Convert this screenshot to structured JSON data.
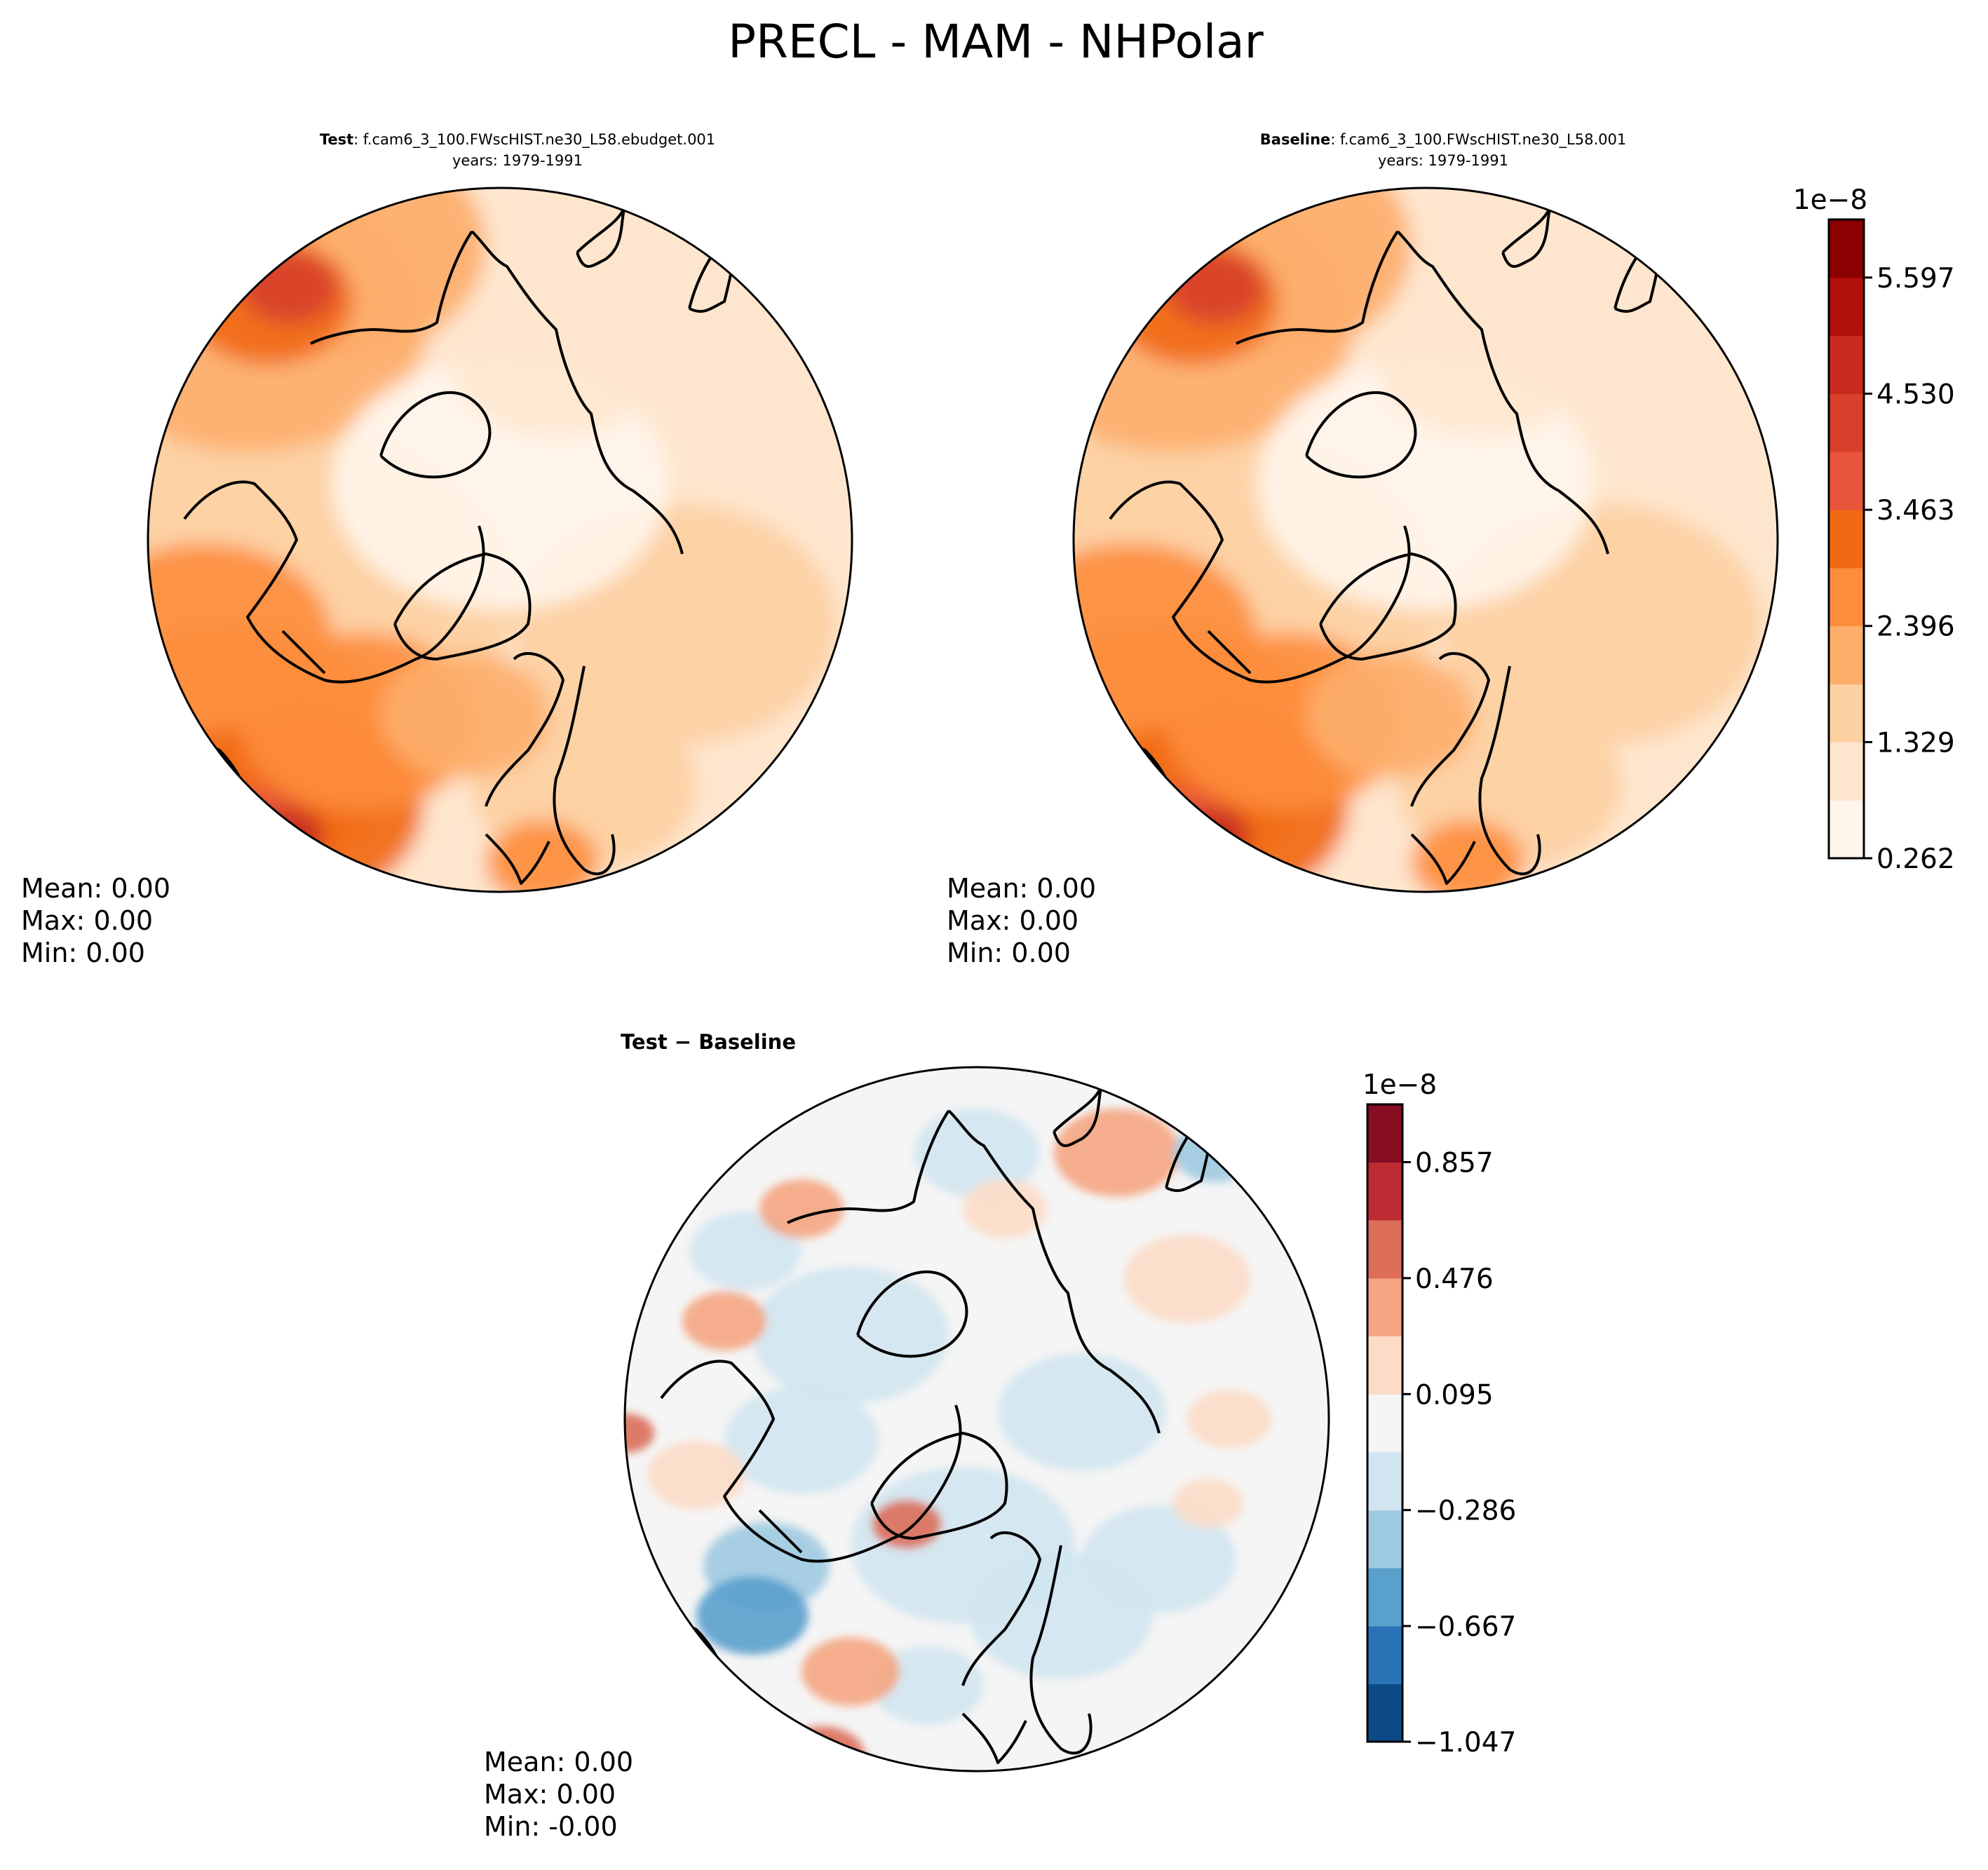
{
  "figure": {
    "title": "PRECL - MAM - NHPolar"
  },
  "panels": {
    "test": {
      "label": "Test",
      "case": ": f.cam6_3_100.FWscHIST.ne30_L58.ebudget.001",
      "years": "years: 1979-1991",
      "stats": {
        "mean": "Mean:  0.00",
        "max": "Max:  0.00",
        "min": "Min:  0.00"
      }
    },
    "baseline": {
      "label": "Baseline",
      "case": ": f.cam6_3_100.FWscHIST.ne30_L58.001",
      "years": "years: 1979-1991",
      "stats": {
        "mean": "Mean:  0.00",
        "max": "Max:  0.00",
        "min": "Min:  0.00"
      }
    },
    "diff": {
      "label": "Test − Baseline",
      "stats": {
        "mean": "Mean:  0.00",
        "max": "Max:  0.00",
        "min": "Min: -0.00"
      }
    }
  },
  "chart_data": [
    {
      "type": "heatmap",
      "title": "PRECL - MAM - NHPolar",
      "panels": [
        "Test",
        "Baseline"
      ],
      "projection": "north polar stereographic",
      "colorbar": {
        "multiplier": "1e−8",
        "ticks": [
          "0.262",
          "1.329",
          "2.396",
          "3.463",
          "4.530",
          "5.597"
        ],
        "levels": [
          0.262,
          0.7955,
          1.329,
          1.8625,
          2.396,
          2.9295,
          3.463,
          3.9965,
          4.53,
          5.0635,
          5.597,
          6.1305
        ],
        "colors": [
          "#fff5eb",
          "#fee6ce",
          "#fdd0a2",
          "#fdae6b",
          "#fd8d3c",
          "#f16913",
          "#e8553b",
          "#d8402b",
          "#c92a1e",
          "#b00f0a",
          "#8b0000"
        ]
      }
    },
    {
      "type": "heatmap",
      "title": "Test − Baseline",
      "projection": "north polar stereographic",
      "colorbar": {
        "multiplier": "1e−8",
        "ticks": [
          "−1.047",
          "−0.667",
          "−0.286",
          "0.095",
          "0.476",
          "0.857"
        ],
        "levels": [
          -1.047,
          -0.857,
          -0.667,
          -0.476,
          -0.286,
          -0.095,
          0.095,
          0.286,
          0.476,
          0.667,
          0.857,
          1.047
        ],
        "colors": [
          "#0b4a87",
          "#2a72b6",
          "#5aa0cd",
          "#9ecae1",
          "#d1e5f0",
          "#f5f5f5",
          "#fcdbc7",
          "#f5a582",
          "#dc6e5a",
          "#bd2b33",
          "#860d22"
        ]
      }
    }
  ],
  "colors": {
    "seq": [
      "#fff5eb",
      "#fee6ce",
      "#fdd0a2",
      "#fdae6b",
      "#fd8d3c",
      "#f16913",
      "#e8553b",
      "#d8402b",
      "#c92a1e",
      "#b00f0a",
      "#8b0000"
    ],
    "div": [
      "#0b4a87",
      "#2a72b6",
      "#5aa0cd",
      "#9ecae1",
      "#d1e5f0",
      "#f5f5f5",
      "#fcdbc7",
      "#f5a582",
      "#dc6e5a",
      "#bd2b33",
      "#860d22"
    ]
  }
}
